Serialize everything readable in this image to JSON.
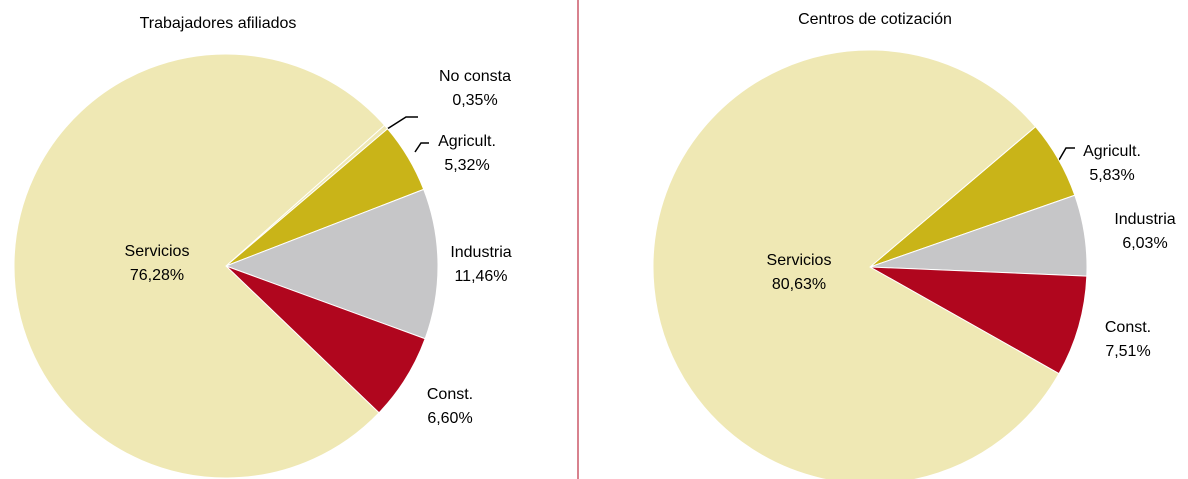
{
  "chart_data": [
    {
      "type": "pie",
      "title": "Trabajadores afiliados",
      "categories": [
        "No consta",
        "Agricult.",
        "Industria",
        "Const.",
        "Servicios"
      ],
      "values": [
        0.35,
        5.32,
        11.46,
        6.6,
        76.28
      ],
      "value_labels": [
        "0,35%",
        "5,32%",
        "11,46%",
        "6,60%",
        "76,28%"
      ],
      "colors": [
        "#efe8b4",
        "#c9b418",
        "#c6c6c8",
        "#b0061e",
        "#efe8b4"
      ]
    },
    {
      "type": "pie",
      "title": "Centros de cotización",
      "categories": [
        "Agricult.",
        "Industria",
        "Const.",
        "Servicios"
      ],
      "values": [
        5.83,
        6.03,
        7.51,
        80.63
      ],
      "value_labels": [
        "5,83%",
        "6,03%",
        "7,51%",
        "80,63%"
      ],
      "colors": [
        "#c9b418",
        "#c6c6c8",
        "#b0061e",
        "#efe8b4"
      ]
    }
  ]
}
